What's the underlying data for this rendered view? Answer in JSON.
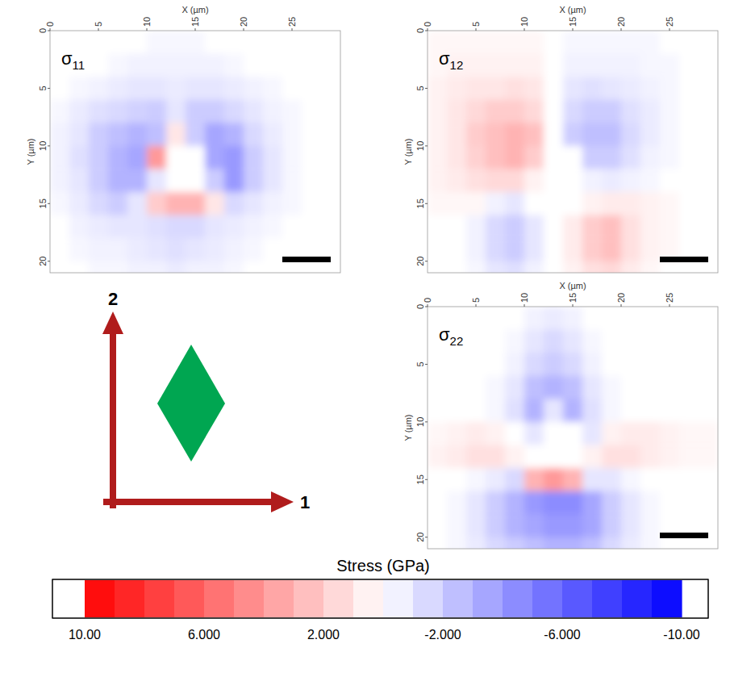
{
  "chart_data": [
    {
      "type": "heatmap",
      "title": "σ11",
      "x_label": "X (µm)",
      "y_label": "Y (µm)",
      "xlim": [
        0,
        30
      ],
      "ylim": [
        0,
        21
      ],
      "xticks": [
        0,
        5,
        10,
        15,
        20,
        25
      ],
      "yticks": [
        0,
        5,
        10,
        15,
        20
      ],
      "scale_bar": 5,
      "x": [
        1,
        3,
        5,
        7,
        9,
        11,
        13,
        15,
        17,
        19,
        21,
        23,
        25,
        27,
        29
      ],
      "y": [
        1,
        3,
        5,
        7,
        9,
        11,
        13,
        15,
        17,
        19,
        21
      ],
      "values": [
        [
          0,
          0,
          0,
          0,
          0,
          -0.3,
          -0.3,
          -0.3,
          0,
          0,
          0,
          0,
          0,
          0,
          0
        ],
        [
          0,
          0,
          0,
          -0.3,
          -0.5,
          -0.5,
          -0.5,
          -0.5,
          -0.5,
          -0.3,
          0,
          0,
          0,
          0,
          0
        ],
        [
          0,
          -0.3,
          -0.5,
          -0.8,
          -1,
          -1,
          -0.8,
          -1,
          -1,
          -0.8,
          -0.5,
          -0.3,
          0,
          0,
          0
        ],
        [
          -0.3,
          -0.8,
          -1.2,
          -1.5,
          -1.8,
          -2,
          -1,
          -2,
          -2,
          -1.5,
          -1,
          -0.5,
          -0.3,
          0,
          0
        ],
        [
          -0.5,
          -1,
          -2,
          -2.5,
          -3,
          -2.5,
          1,
          -2,
          -3.5,
          -3,
          -1.5,
          -0.8,
          -0.3,
          0,
          0
        ],
        [
          -0.5,
          -1.2,
          -2,
          -3,
          -3.5,
          4,
          0,
          0,
          -3.5,
          -4,
          -2,
          -1,
          -0.3,
          0,
          0
        ],
        [
          -0.5,
          -1,
          -2,
          -3,
          -3,
          -1,
          0,
          0,
          -2,
          -4,
          -2,
          -1,
          -0.3,
          0,
          0
        ],
        [
          -0.3,
          -0.8,
          -1.5,
          -2,
          -1,
          2,
          3,
          3,
          1,
          -1.5,
          -1,
          -0.5,
          -0.3,
          0,
          0
        ],
        [
          0,
          -0.5,
          -0.8,
          -1,
          -1,
          -1.2,
          -1.5,
          -1.5,
          -1,
          -0.8,
          -0.5,
          -0.3,
          0,
          0,
          0
        ],
        [
          0,
          -0.3,
          -0.5,
          -0.5,
          -0.8,
          -1,
          -1.2,
          -1,
          -0.8,
          -0.5,
          -0.3,
          0,
          0,
          0,
          0
        ],
        [
          0,
          0,
          -0.3,
          -0.3,
          -0.5,
          -0.5,
          -0.8,
          -0.5,
          -0.5,
          -0.3,
          0,
          0,
          0,
          0,
          0
        ]
      ]
    },
    {
      "type": "heatmap",
      "title": "σ12",
      "x_label": "X (µm)",
      "y_label": "Y (µm)",
      "xlim": [
        0,
        30
      ],
      "ylim": [
        0,
        21
      ],
      "xticks": [
        0,
        5,
        10,
        15,
        20,
        25
      ],
      "yticks": [
        0,
        5,
        10,
        15,
        20
      ],
      "scale_bar": 5,
      "x": [
        1,
        3,
        5,
        7,
        9,
        11,
        13,
        15,
        17,
        19,
        21,
        23,
        25,
        27,
        29
      ],
      "y": [
        1,
        3,
        5,
        7,
        9,
        11,
        13,
        15,
        17,
        19,
        21
      ],
      "values": [
        [
          0.3,
          0.3,
          0.3,
          0.3,
          0.3,
          0.3,
          0,
          -0.3,
          -0.3,
          -0.3,
          -0.3,
          -0.3,
          0,
          0,
          0
        ],
        [
          0.3,
          0.5,
          0.5,
          0.5,
          0.5,
          0.5,
          0,
          -0.5,
          -0.5,
          -0.5,
          -0.5,
          -0.3,
          -0.3,
          0,
          0
        ],
        [
          0.5,
          0.8,
          1,
          1,
          1.2,
          1,
          0,
          -1,
          -1.2,
          -1,
          -0.8,
          -0.5,
          -0.3,
          0,
          0
        ],
        [
          0.5,
          1,
          1.5,
          2,
          2,
          1.5,
          0,
          -1.5,
          -2,
          -2,
          -1.2,
          -0.8,
          -0.3,
          0,
          0
        ],
        [
          0.5,
          1,
          2,
          2.5,
          3,
          2.5,
          0,
          -2,
          -2.5,
          -2.5,
          -1.5,
          -0.8,
          -0.3,
          0,
          0
        ],
        [
          0.5,
          1,
          1.8,
          2.5,
          3,
          2,
          0,
          0,
          -2,
          -2,
          -1.2,
          -0.5,
          -0.3,
          0,
          0
        ],
        [
          0.5,
          0.8,
          1.2,
          1.5,
          1.5,
          0.5,
          0,
          0,
          -0.5,
          -0.8,
          -0.5,
          -0.3,
          0,
          0,
          0
        ],
        [
          0.3,
          0.3,
          0.3,
          -0.5,
          -1,
          0,
          0,
          0,
          0.5,
          0.8,
          0.8,
          0.5,
          0.3,
          0,
          0
        ],
        [
          0,
          0,
          -0.5,
          -1.5,
          -2,
          -1,
          0,
          0.8,
          2,
          2.5,
          1.2,
          0.5,
          0.3,
          0,
          0
        ],
        [
          0,
          0,
          -0.5,
          -1.5,
          -2,
          -1,
          0,
          0.8,
          2,
          2.5,
          1.2,
          0.5,
          0.3,
          0,
          0
        ],
        [
          0,
          0,
          -0.3,
          -1,
          -1.2,
          -0.5,
          0,
          0.5,
          1.2,
          1.5,
          0.8,
          0.3,
          0,
          0,
          0
        ]
      ]
    },
    {
      "type": "heatmap",
      "title": "σ22",
      "x_label": "X (µm)",
      "y_label": "Y (µm)",
      "xlim": [
        0,
        30
      ],
      "ylim": [
        0,
        21
      ],
      "xticks": [
        0,
        5,
        10,
        15,
        20,
        25
      ],
      "yticks": [
        0,
        5,
        10,
        15,
        20
      ],
      "scale_bar": 5,
      "x": [
        1,
        3,
        5,
        7,
        9,
        11,
        13,
        15,
        17,
        19,
        21,
        23,
        25,
        27,
        29
      ],
      "y": [
        1,
        3,
        5,
        7,
        9,
        11,
        13,
        15,
        17,
        19,
        21
      ],
      "values": [
        [
          0,
          0,
          0,
          0,
          0,
          -0.5,
          -0.8,
          -0.5,
          0,
          0,
          0,
          0,
          0,
          0,
          0
        ],
        [
          0,
          0,
          0,
          0,
          -0.3,
          -1,
          -1.5,
          -1,
          -0.3,
          0,
          0,
          0,
          0,
          0,
          0
        ],
        [
          0,
          0,
          0,
          0,
          -0.5,
          -1.5,
          -2,
          -1.5,
          -0.5,
          0,
          0,
          0,
          0,
          0,
          0
        ],
        [
          0,
          0,
          0,
          -0.3,
          -1,
          -2.5,
          -3,
          -2.5,
          -1,
          -0.3,
          0,
          0,
          0,
          0,
          0
        ],
        [
          0,
          0,
          0,
          -0.3,
          -1.2,
          -3,
          -1,
          -3,
          -1.2,
          -0.3,
          0,
          0,
          0,
          0,
          0
        ],
        [
          0.3,
          0.5,
          0.8,
          0.5,
          0,
          -1,
          0,
          0,
          -1,
          0.5,
          0.8,
          0.8,
          0.5,
          0.3,
          0.3
        ],
        [
          0.5,
          0.8,
          1.2,
          1.2,
          0.5,
          0,
          0,
          0,
          0.5,
          1.2,
          1.2,
          0.8,
          0.5,
          0.3,
          0.3
        ],
        [
          0,
          0,
          -0.3,
          -0.8,
          -1.5,
          3,
          4,
          3,
          -1,
          -1,
          -0.3,
          0,
          0,
          0,
          0
        ],
        [
          0,
          -0.3,
          -1,
          -2,
          -3,
          -4,
          -4.5,
          -4.5,
          -3.5,
          -2,
          -1,
          -0.3,
          0,
          0,
          0
        ],
        [
          0,
          -0.3,
          -1,
          -2,
          -3,
          -3.5,
          -4,
          -4,
          -3.5,
          -2,
          -1,
          -0.3,
          0,
          0,
          0
        ],
        [
          0,
          -0.3,
          -0.8,
          -1.5,
          -2,
          -2.5,
          -3,
          -3,
          -2.5,
          -1.5,
          -0.8,
          -0.3,
          0,
          0,
          0
        ]
      ]
    }
  ],
  "colorbar": {
    "title": "Stress (GPa)",
    "range": [
      10,
      -10
    ],
    "colors": [
      "#ff0000",
      "#ffffff",
      "#0000ff"
    ],
    "ticks": [
      {
        "value": 10,
        "label": "10.00"
      },
      {
        "value": 6,
        "label": "6.000"
      },
      {
        "value": 2,
        "label": "2.000"
      },
      {
        "value": -2,
        "label": "-2.000"
      },
      {
        "value": -6,
        "label": "-6.000"
      },
      {
        "value": -10,
        "label": "-10.00"
      }
    ]
  },
  "diagram": {
    "axis_1": "1",
    "axis_2": "2"
  }
}
